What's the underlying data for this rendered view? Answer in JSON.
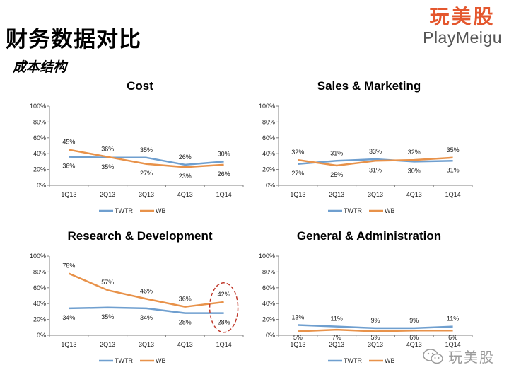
{
  "header": {
    "title": "财务数据对比",
    "subtitle": "成本结构"
  },
  "logo": {
    "cn": "玩美股",
    "en": "PlayMeigu"
  },
  "watermark": {
    "text": "玩美股"
  },
  "colors": {
    "twtr": "#6f9fcf",
    "wb": "#e8924a",
    "highlight": "#c0392b",
    "axis": "#808080"
  },
  "chart_data": [
    {
      "type": "line",
      "title": "Cost",
      "categories": [
        "1Q13",
        "2Q13",
        "3Q13",
        "4Q13",
        "1Q14"
      ],
      "ylim": [
        0,
        100
      ],
      "yticks": [
        "0%",
        "20%",
        "40%",
        "60%",
        "80%",
        "100%"
      ],
      "legend_position": "bottom",
      "series": [
        {
          "name": "TWTR",
          "values": [
            36,
            35,
            35,
            26,
            30
          ],
          "labels": [
            "36%",
            "35%",
            "35%",
            "26%",
            "30%"
          ]
        },
        {
          "name": "WB",
          "values": [
            45,
            36,
            27,
            23,
            26
          ],
          "labels": [
            "45%",
            "36%",
            "27%",
            "23%",
            "26%"
          ]
        }
      ]
    },
    {
      "type": "line",
      "title": "Sales & Marketing",
      "categories": [
        "1Q13",
        "2Q13",
        "3Q13",
        "4Q13",
        "1Q14"
      ],
      "ylim": [
        0,
        100
      ],
      "yticks": [
        "0%",
        "20%",
        "40%",
        "60%",
        "80%",
        "100%"
      ],
      "legend_position": "bottom",
      "series": [
        {
          "name": "TWTR",
          "values": [
            27,
            31,
            33,
            30,
            31
          ],
          "labels": [
            "27%",
            "31%",
            "33%",
            "30%",
            "31%"
          ]
        },
        {
          "name": "WB",
          "values": [
            32,
            25,
            31,
            32,
            35
          ],
          "labels": [
            "32%",
            "25%",
            "31%",
            "32%",
            "35%"
          ]
        }
      ]
    },
    {
      "type": "line",
      "title": "Research & Development",
      "categories": [
        "1Q13",
        "2Q13",
        "3Q13",
        "4Q13",
        "1Q14"
      ],
      "ylim": [
        0,
        100
      ],
      "yticks": [
        "0%",
        "20%",
        "40%",
        "60%",
        "80%",
        "100%"
      ],
      "legend_position": "bottom",
      "series": [
        {
          "name": "TWTR",
          "values": [
            34,
            35,
            34,
            28,
            28
          ],
          "labels": [
            "34%",
            "35%",
            "34%",
            "28%",
            "28%"
          ]
        },
        {
          "name": "WB",
          "values": [
            78,
            57,
            46,
            36,
            42
          ],
          "labels": [
            "78%",
            "57%",
            "46%",
            "36%",
            "42%"
          ]
        }
      ],
      "highlight_category": "1Q14"
    },
    {
      "type": "line",
      "title": "General & Administration",
      "categories": [
        "1Q13",
        "2Q13",
        "3Q13",
        "4Q13",
        "1Q14"
      ],
      "ylim": [
        0,
        100
      ],
      "yticks": [
        "0%",
        "20%",
        "40%",
        "60%",
        "80%",
        "100%"
      ],
      "legend_position": "bottom",
      "series": [
        {
          "name": "TWTR",
          "values": [
            13,
            11,
            9,
            9,
            11
          ],
          "labels": [
            "13%",
            "11%",
            "9%",
            "9%",
            "11%"
          ]
        },
        {
          "name": "WB",
          "values": [
            5,
            7,
            5,
            6,
            6
          ],
          "labels": [
            "5%",
            "7%",
            "5%",
            "6%",
            "6%"
          ]
        }
      ]
    }
  ]
}
